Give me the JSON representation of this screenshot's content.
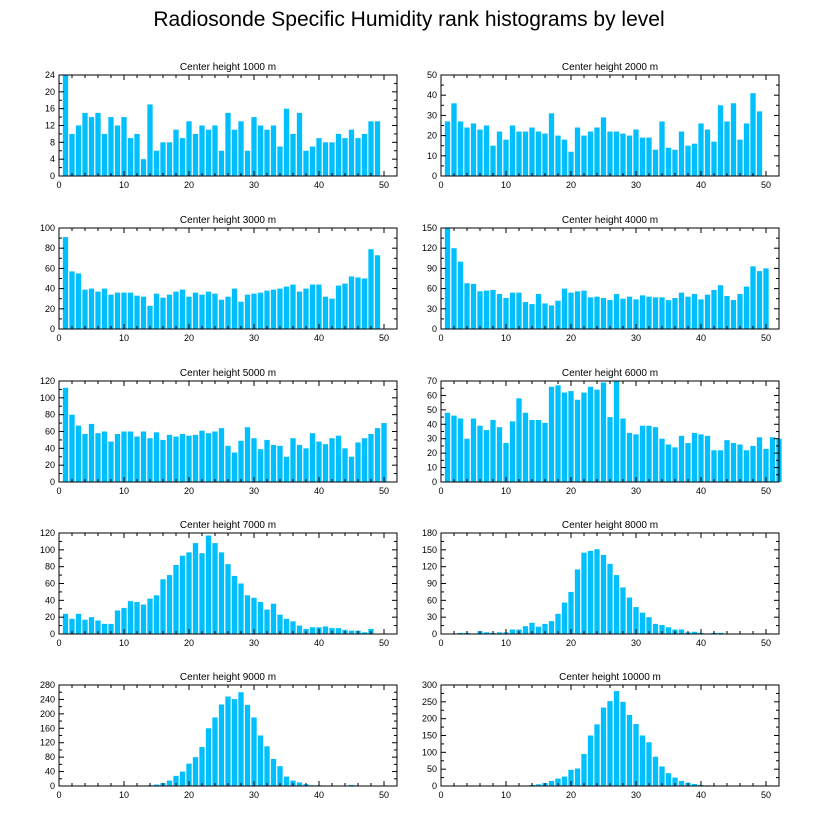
{
  "title": "Radiosonde Specific Humidity rank histograms by level",
  "bar_color": "#00bfff",
  "chart_data": [
    {
      "type": "bar",
      "title": "Center height 1000 m",
      "xlim": [
        0,
        52
      ],
      "ylim": [
        0,
        24
      ],
      "xticks": [
        0,
        10,
        20,
        30,
        40,
        50
      ],
      "yticks": [
        0,
        4,
        8,
        12,
        16,
        20,
        24
      ],
      "values": [
        24,
        10,
        12,
        15,
        14,
        15,
        10,
        14,
        12,
        14,
        9,
        10,
        4,
        17,
        6,
        8,
        8,
        11,
        9,
        13,
        10,
        12,
        11,
        12,
        6,
        15,
        11,
        13,
        6,
        14,
        12,
        11,
        12,
        7,
        16,
        10,
        15,
        6,
        7,
        9,
        8,
        8,
        10,
        9,
        11,
        9,
        10,
        13,
        13
      ]
    },
    {
      "type": "bar",
      "title": "Center height 2000 m",
      "xlim": [
        0,
        52
      ],
      "ylim": [
        0,
        50
      ],
      "xticks": [
        0,
        10,
        20,
        30,
        40,
        50
      ],
      "yticks": [
        0,
        10,
        20,
        30,
        40,
        50
      ],
      "values": [
        27,
        36,
        27,
        24,
        26,
        23,
        25,
        15,
        22,
        18,
        25,
        22,
        22,
        24,
        22,
        21,
        31,
        20,
        18,
        12,
        24,
        20,
        22,
        24,
        29,
        22,
        22,
        21,
        20,
        23,
        19,
        19,
        13,
        27,
        14,
        13,
        22,
        15,
        16,
        26,
        23,
        17,
        35,
        27,
        36,
        18,
        26,
        41,
        32
      ]
    },
    {
      "type": "bar",
      "title": "Center height 3000 m",
      "xlim": [
        0,
        52
      ],
      "ylim": [
        0,
        100
      ],
      "xticks": [
        0,
        10,
        20,
        30,
        40,
        50
      ],
      "yticks": [
        0,
        20,
        40,
        60,
        80,
        100
      ],
      "values": [
        91,
        57,
        55,
        39,
        40,
        37,
        40,
        34,
        36,
        36,
        36,
        33,
        32,
        23,
        35,
        31,
        34,
        37,
        39,
        32,
        36,
        34,
        37,
        35,
        29,
        32,
        40,
        27,
        34,
        35,
        36,
        38,
        39,
        40,
        42,
        44,
        37,
        40,
        44,
        44,
        32,
        30,
        43,
        45,
        52,
        51,
        50,
        79,
        73
      ]
    },
    {
      "type": "bar",
      "title": "Center height 4000 m",
      "xlim": [
        0,
        52
      ],
      "ylim": [
        0,
        150
      ],
      "xticks": [
        0,
        10,
        20,
        30,
        40,
        50
      ],
      "yticks": [
        0,
        30,
        60,
        90,
        120,
        150
      ],
      "values": [
        150,
        120,
        100,
        68,
        67,
        56,
        57,
        58,
        52,
        46,
        54,
        54,
        40,
        37,
        52,
        38,
        35,
        42,
        60,
        54,
        56,
        57,
        47,
        48,
        46,
        43,
        52,
        45,
        48,
        44,
        50,
        48,
        47,
        47,
        43,
        46,
        54,
        48,
        52,
        44,
        51,
        58,
        65,
        49,
        43,
        52,
        63,
        93,
        86,
        90
      ]
    },
    {
      "type": "bar",
      "title": "Center height 5000 m",
      "xlim": [
        0,
        52
      ],
      "ylim": [
        0,
        120
      ],
      "xticks": [
        0,
        10,
        20,
        30,
        40,
        50
      ],
      "yticks": [
        0,
        20,
        40,
        60,
        80,
        100,
        120
      ],
      "values": [
        112,
        80,
        67,
        57,
        69,
        58,
        60,
        48,
        57,
        60,
        60,
        54,
        60,
        52,
        59,
        50,
        56,
        54,
        57,
        55,
        56,
        61,
        58,
        60,
        64,
        43,
        35,
        49,
        65,
        52,
        39,
        50,
        44,
        43,
        30,
        52,
        44,
        40,
        58,
        48,
        45,
        52,
        55,
        40,
        30,
        47,
        52,
        57,
        64,
        70
      ]
    },
    {
      "type": "bar",
      "title": "Center height 6000 m",
      "xlim": [
        0,
        52
      ],
      "ylim": [
        0,
        70
      ],
      "xticks": [
        0,
        10,
        20,
        30,
        40,
        50
      ],
      "yticks": [
        0,
        10,
        20,
        30,
        40,
        50,
        60,
        70
      ],
      "values": [
        48,
        46,
        44,
        30,
        44,
        39,
        36,
        43,
        38,
        27,
        42,
        58,
        48,
        43,
        43,
        41,
        66,
        67,
        62,
        63,
        57,
        62,
        66,
        64,
        69,
        45,
        70,
        44,
        34,
        33,
        39,
        39,
        38,
        30,
        26,
        24,
        32,
        27,
        34,
        33,
        32,
        22,
        22,
        29,
        27,
        26,
        22,
        25,
        31,
        23,
        31,
        30
      ]
    },
    {
      "type": "bar",
      "title": "Center height 7000 m",
      "xlim": [
        0,
        52
      ],
      "ylim": [
        0,
        120
      ],
      "xticks": [
        0,
        10,
        20,
        30,
        40,
        50
      ],
      "yticks": [
        0,
        20,
        40,
        60,
        80,
        100,
        120
      ],
      "values": [
        24,
        18,
        24,
        17,
        20,
        16,
        12,
        12,
        28,
        31,
        39,
        38,
        35,
        42,
        46,
        65,
        70,
        82,
        93,
        97,
        108,
        96,
        117,
        108,
        97,
        83,
        69,
        60,
        46,
        43,
        38,
        29,
        36,
        23,
        18,
        15,
        10,
        6,
        8,
        8,
        9,
        7,
        7,
        5,
        4,
        4,
        2,
        6
      ]
    },
    {
      "type": "bar",
      "title": "Center height 8000 m",
      "xlim": [
        0,
        52
      ],
      "ylim": [
        0,
        180
      ],
      "xticks": [
        0,
        10,
        20,
        30,
        40,
        50
      ],
      "yticks": [
        0,
        30,
        60,
        90,
        120,
        150,
        180
      ],
      "values": [
        0,
        0,
        2,
        2,
        1,
        5,
        3,
        2,
        3,
        3,
        8,
        8,
        14,
        20,
        13,
        18,
        23,
        36,
        56,
        75,
        115,
        145,
        148,
        151,
        141,
        125,
        105,
        83,
        65,
        48,
        38,
        30,
        18,
        16,
        12,
        8,
        8,
        3,
        4,
        2,
        1,
        2,
        2,
        0,
        1,
        0,
        0,
        0,
        0,
        0
      ]
    },
    {
      "type": "bar",
      "title": "Center height 9000 m",
      "xlim": [
        0,
        52
      ],
      "ylim": [
        0,
        280
      ],
      "xticks": [
        0,
        10,
        20,
        30,
        40,
        50
      ],
      "yticks": [
        0,
        40,
        80,
        120,
        160,
        200,
        240,
        280
      ],
      "values": [
        0,
        0,
        0,
        0,
        0,
        0,
        0,
        0,
        0,
        0,
        0,
        0,
        0,
        2,
        4,
        8,
        15,
        28,
        40,
        62,
        80,
        108,
        160,
        190,
        226,
        248,
        241,
        260,
        225,
        190,
        140,
        110,
        75,
        55,
        26,
        15,
        10,
        5,
        2,
        2,
        1,
        0,
        0,
        0,
        3,
        0,
        0,
        0,
        0,
        0,
        0,
        0
      ]
    },
    {
      "type": "bar",
      "title": "Center height 10000 m",
      "xlim": [
        0,
        52
      ],
      "ylim": [
        0,
        300
      ],
      "xticks": [
        0,
        10,
        20,
        30,
        40,
        50
      ],
      "yticks": [
        0,
        50,
        100,
        150,
        200,
        250,
        300
      ],
      "values": [
        0,
        0,
        0,
        0,
        0,
        0,
        0,
        0,
        0,
        0,
        0,
        0,
        0,
        3,
        5,
        9,
        15,
        22,
        28,
        48,
        52,
        95,
        150,
        183,
        233,
        252,
        282,
        250,
        211,
        184,
        150,
        130,
        87,
        58,
        38,
        25,
        15,
        10,
        6,
        3,
        2,
        1,
        0,
        0,
        0,
        0,
        0,
        0,
        0,
        0
      ]
    }
  ]
}
